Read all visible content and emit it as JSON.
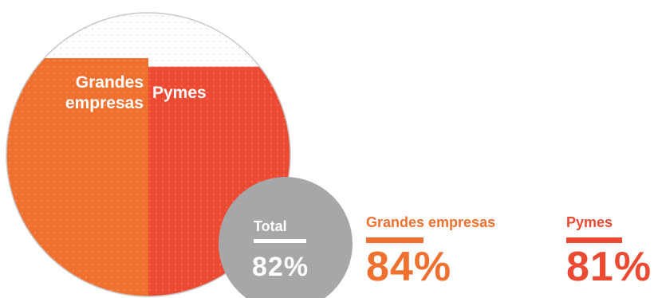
{
  "chart_data": {
    "type": "bar",
    "title": "",
    "categories": [
      "Grandes empresas",
      "Pymes"
    ],
    "labels": [
      "Grandes\nempresas",
      "Pymes"
    ],
    "values": [
      84,
      81
    ],
    "ylim": [
      0,
      100
    ],
    "total": {
      "label": "Total",
      "value": 82,
      "display": "82%"
    }
  },
  "stats": [
    {
      "label": "Grandes empresas",
      "display": "84%"
    },
    {
      "label": "Pymes",
      "display": "81%"
    }
  ],
  "colors": {
    "grandes": "#f07030",
    "pymes": "#ec4a32",
    "background_dots": "#c8c8c8",
    "total_circle": "#a7a7a9",
    "text_on_fill": "#ffffff"
  }
}
